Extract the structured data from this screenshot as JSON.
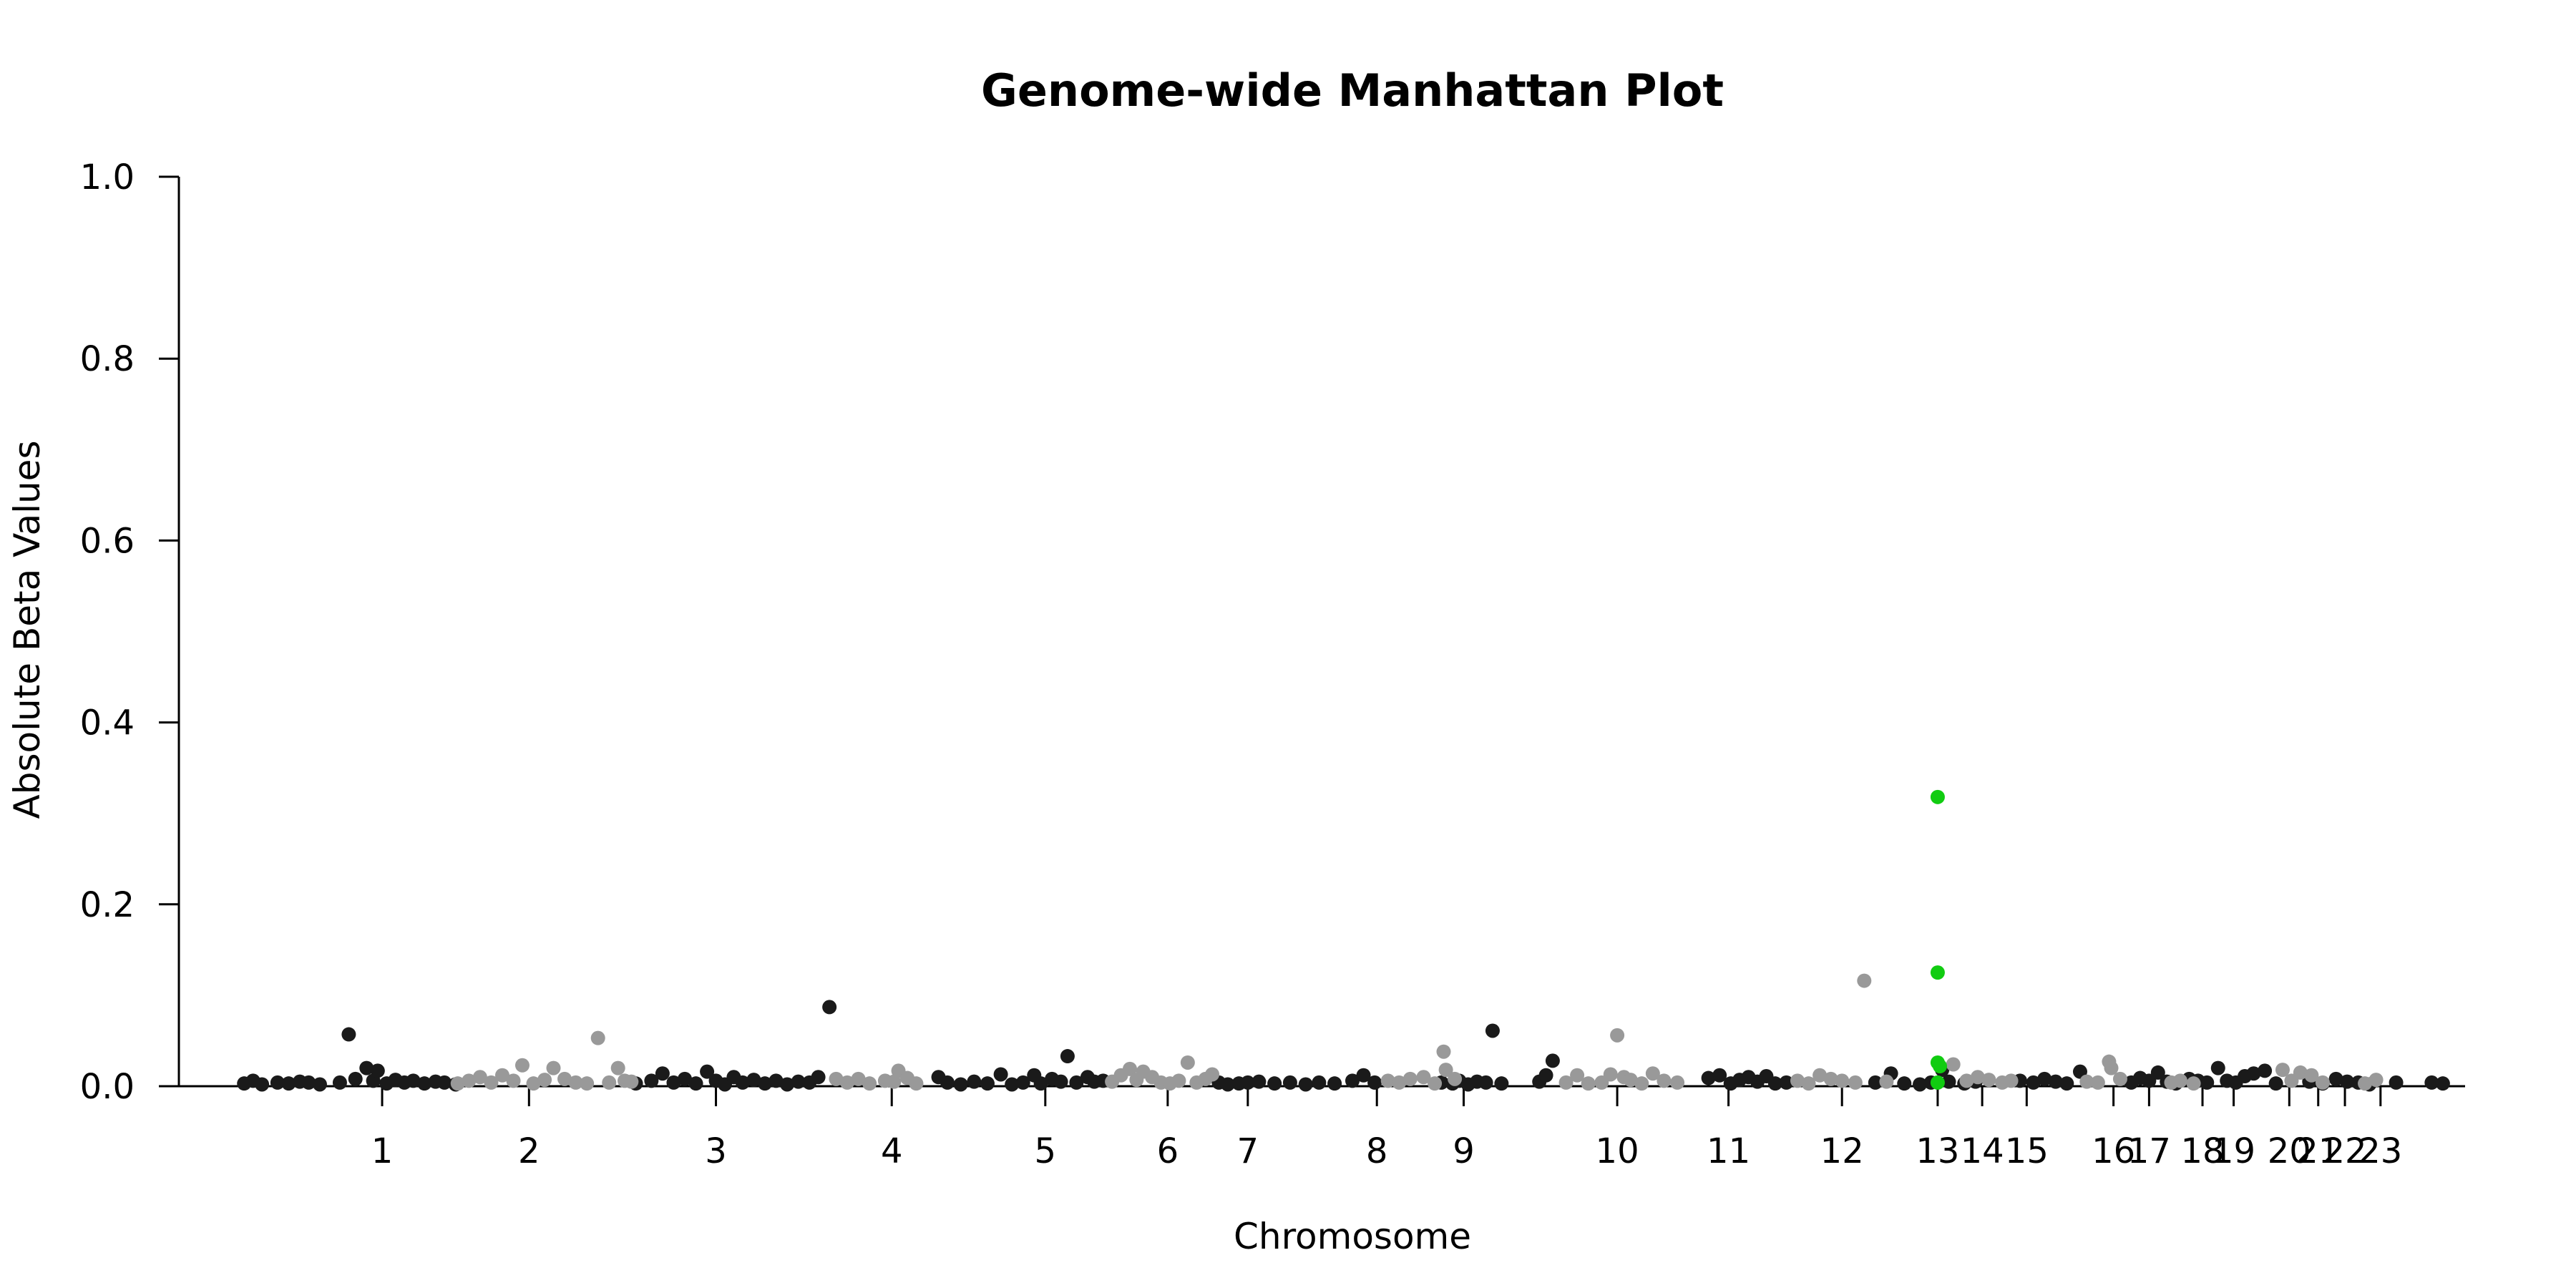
{
  "chart_data": {
    "type": "scatter",
    "title": "Genome-wide Manhattan Plot",
    "xlabel": "Chromosome",
    "ylabel": "Absolute Beta Values",
    "ylim": [
      0,
      1.0
    ],
    "y_ticks": [
      0.0,
      0.2,
      0.4,
      0.6,
      0.8,
      1.0
    ],
    "y_tick_labels": [
      "0.0",
      "0.2",
      "0.4",
      "0.6",
      "0.8",
      "1.0"
    ],
    "x_ticks": [
      {
        "label": "1",
        "pos": 0.064
      },
      {
        "label": "2",
        "pos": 0.13
      },
      {
        "label": "3",
        "pos": 0.214
      },
      {
        "label": "4",
        "pos": 0.293
      },
      {
        "label": "5",
        "pos": 0.362
      },
      {
        "label": "6",
        "pos": 0.417
      },
      {
        "label": "7",
        "pos": 0.453
      },
      {
        "label": "8",
        "pos": 0.511
      },
      {
        "label": "9",
        "pos": 0.55
      },
      {
        "label": "10",
        "pos": 0.619
      },
      {
        "label": "11",
        "pos": 0.669
      },
      {
        "label": "12",
        "pos": 0.72
      },
      {
        "label": "13",
        "pos": 0.763
      },
      {
        "label": "14",
        "pos": 0.783
      },
      {
        "label": "15",
        "pos": 0.803
      },
      {
        "label": "16",
        "pos": 0.842
      },
      {
        "label": "17",
        "pos": 0.858
      },
      {
        "label": "18",
        "pos": 0.882
      },
      {
        "label": "19",
        "pos": 0.896
      },
      {
        "label": "20",
        "pos": 0.921
      },
      {
        "label": "21",
        "pos": 0.934
      },
      {
        "label": "22",
        "pos": 0.946
      },
      {
        "label": "23",
        "pos": 0.962
      }
    ],
    "colors": {
      "dark": "#1a1a1a",
      "light": "#999999",
      "highlight": "#11cc11"
    },
    "series": [
      {
        "color": "dark",
        "points": [
          [
            0.002,
            0.003
          ],
          [
            0.006,
            0.006
          ],
          [
            0.01,
            0.002
          ],
          [
            0.017,
            0.004
          ],
          [
            0.022,
            0.003
          ],
          [
            0.027,
            0.005
          ],
          [
            0.031,
            0.004
          ],
          [
            0.036,
            0.002
          ],
          [
            0.045,
            0.004
          ],
          [
            0.049,
            0.057
          ],
          [
            0.052,
            0.008
          ],
          [
            0.057,
            0.02
          ],
          [
            0.06,
            0.006
          ],
          [
            0.062,
            0.017
          ],
          [
            0.066,
            0.003
          ],
          [
            0.07,
            0.007
          ],
          [
            0.074,
            0.004
          ],
          [
            0.078,
            0.006
          ],
          [
            0.083,
            0.003
          ],
          [
            0.088,
            0.005
          ],
          [
            0.092,
            0.004
          ],
          [
            0.097,
            0.002
          ],
          [
            0.178,
            0.003
          ],
          [
            0.185,
            0.006
          ],
          [
            0.19,
            0.014
          ],
          [
            0.195,
            0.004
          ],
          [
            0.2,
            0.008
          ],
          [
            0.205,
            0.003
          ],
          [
            0.21,
            0.016
          ],
          [
            0.214,
            0.006
          ],
          [
            0.218,
            0.002
          ],
          [
            0.222,
            0.01
          ],
          [
            0.226,
            0.004
          ],
          [
            0.231,
            0.007
          ],
          [
            0.236,
            0.003
          ],
          [
            0.241,
            0.006
          ],
          [
            0.246,
            0.002
          ],
          [
            0.251,
            0.005
          ],
          [
            0.256,
            0.004
          ],
          [
            0.26,
            0.01
          ],
          [
            0.265,
            0.087
          ],
          [
            0.314,
            0.01
          ],
          [
            0.318,
            0.004
          ],
          [
            0.324,
            0.002
          ],
          [
            0.33,
            0.005
          ],
          [
            0.336,
            0.003
          ],
          [
            0.342,
            0.013
          ],
          [
            0.347,
            0.002
          ],
          [
            0.352,
            0.004
          ],
          [
            0.357,
            0.012
          ],
          [
            0.36,
            0.003
          ],
          [
            0.365,
            0.008
          ],
          [
            0.369,
            0.005
          ],
          [
            0.372,
            0.033
          ],
          [
            0.376,
            0.004
          ],
          [
            0.381,
            0.01
          ],
          [
            0.384,
            0.005
          ],
          [
            0.388,
            0.006
          ],
          [
            0.44,
            0.004
          ],
          [
            0.444,
            0.002
          ],
          [
            0.449,
            0.003
          ],
          [
            0.453,
            0.004
          ],
          [
            0.458,
            0.005
          ],
          [
            0.465,
            0.003
          ],
          [
            0.472,
            0.004
          ],
          [
            0.479,
            0.002
          ],
          [
            0.485,
            0.004
          ],
          [
            0.492,
            0.003
          ],
          [
            0.5,
            0.006
          ],
          [
            0.505,
            0.012
          ],
          [
            0.51,
            0.004
          ],
          [
            0.54,
            0.004
          ],
          [
            0.545,
            0.003
          ],
          [
            0.548,
            0.006
          ],
          [
            0.552,
            0.002
          ],
          [
            0.556,
            0.005
          ],
          [
            0.56,
            0.004
          ],
          [
            0.563,
            0.061
          ],
          [
            0.567,
            0.003
          ],
          [
            0.584,
            0.005
          ],
          [
            0.587,
            0.012
          ],
          [
            0.59,
            0.028
          ],
          [
            0.66,
            0.009
          ],
          [
            0.665,
            0.012
          ],
          [
            0.67,
            0.003
          ],
          [
            0.674,
            0.007
          ],
          [
            0.678,
            0.01
          ],
          [
            0.682,
            0.005
          ],
          [
            0.686,
            0.011
          ],
          [
            0.69,
            0.003
          ],
          [
            0.695,
            0.004
          ],
          [
            0.735,
            0.004
          ],
          [
            0.742,
            0.014
          ],
          [
            0.748,
            0.003
          ],
          [
            0.755,
            0.002
          ],
          [
            0.76,
            0.004
          ],
          [
            0.765,
            0.018
          ],
          [
            0.768,
            0.005
          ],
          [
            0.775,
            0.003
          ],
          [
            0.78,
            0.005
          ],
          [
            0.8,
            0.006
          ],
          [
            0.806,
            0.004
          ],
          [
            0.811,
            0.008
          ],
          [
            0.816,
            0.005
          ],
          [
            0.821,
            0.003
          ],
          [
            0.827,
            0.016
          ],
          [
            0.85,
            0.004
          ],
          [
            0.854,
            0.009
          ],
          [
            0.858,
            0.006
          ],
          [
            0.862,
            0.015
          ],
          [
            0.866,
            0.005
          ],
          [
            0.87,
            0.003
          ],
          [
            0.876,
            0.008
          ],
          [
            0.88,
            0.006
          ],
          [
            0.884,
            0.004
          ],
          [
            0.889,
            0.02
          ],
          [
            0.893,
            0.006
          ],
          [
            0.897,
            0.004
          ],
          [
            0.901,
            0.011
          ],
          [
            0.905,
            0.014
          ],
          [
            0.91,
            0.017
          ],
          [
            0.915,
            0.003
          ],
          [
            0.93,
            0.005
          ],
          [
            0.936,
            0.003
          ],
          [
            0.942,
            0.008
          ],
          [
            0.947,
            0.005
          ],
          [
            0.952,
            0.004
          ],
          [
            0.957,
            0.002
          ],
          [
            0.969,
            0.004
          ],
          [
            0.985,
            0.004
          ],
          [
            0.99,
            0.003
          ]
        ]
      },
      {
        "color": "light",
        "points": [
          [
            0.098,
            0.003
          ],
          [
            0.103,
            0.006
          ],
          [
            0.108,
            0.01
          ],
          [
            0.113,
            0.004
          ],
          [
            0.118,
            0.012
          ],
          [
            0.123,
            0.006
          ],
          [
            0.127,
            0.023
          ],
          [
            0.132,
            0.003
          ],
          [
            0.137,
            0.007
          ],
          [
            0.141,
            0.02
          ],
          [
            0.146,
            0.008
          ],
          [
            0.151,
            0.004
          ],
          [
            0.156,
            0.003
          ],
          [
            0.161,
            0.053
          ],
          [
            0.166,
            0.004
          ],
          [
            0.17,
            0.02
          ],
          [
            0.173,
            0.006
          ],
          [
            0.176,
            0.005
          ],
          [
            0.268,
            0.008
          ],
          [
            0.273,
            0.004
          ],
          [
            0.278,
            0.008
          ],
          [
            0.283,
            0.003
          ],
          [
            0.29,
            0.006
          ],
          [
            0.294,
            0.005
          ],
          [
            0.296,
            0.017
          ],
          [
            0.3,
            0.009
          ],
          [
            0.304,
            0.003
          ],
          [
            0.392,
            0.005
          ],
          [
            0.396,
            0.012
          ],
          [
            0.4,
            0.019
          ],
          [
            0.403,
            0.007
          ],
          [
            0.406,
            0.016
          ],
          [
            0.41,
            0.01
          ],
          [
            0.414,
            0.004
          ],
          [
            0.418,
            0.003
          ],
          [
            0.422,
            0.006
          ],
          [
            0.426,
            0.026
          ],
          [
            0.43,
            0.004
          ],
          [
            0.434,
            0.008
          ],
          [
            0.437,
            0.013
          ],
          [
            0.516,
            0.006
          ],
          [
            0.521,
            0.004
          ],
          [
            0.526,
            0.008
          ],
          [
            0.532,
            0.01
          ],
          [
            0.537,
            0.003
          ],
          [
            0.541,
            0.038
          ],
          [
            0.542,
            0.018
          ],
          [
            0.546,
            0.008
          ],
          [
            0.596,
            0.004
          ],
          [
            0.601,
            0.012
          ],
          [
            0.606,
            0.003
          ],
          [
            0.612,
            0.004
          ],
          [
            0.616,
            0.013
          ],
          [
            0.619,
            0.056
          ],
          [
            0.622,
            0.01
          ],
          [
            0.625,
            0.007
          ],
          [
            0.63,
            0.003
          ],
          [
            0.635,
            0.014
          ],
          [
            0.64,
            0.006
          ],
          [
            0.646,
            0.004
          ],
          [
            0.7,
            0.006
          ],
          [
            0.705,
            0.003
          ],
          [
            0.71,
            0.012
          ],
          [
            0.715,
            0.008
          ],
          [
            0.72,
            0.006
          ],
          [
            0.726,
            0.004
          ],
          [
            0.73,
            0.116
          ],
          [
            0.74,
            0.005
          ],
          [
            0.77,
            0.024
          ],
          [
            0.776,
            0.006
          ],
          [
            0.781,
            0.01
          ],
          [
            0.786,
            0.007
          ],
          [
            0.792,
            0.004
          ],
          [
            0.796,
            0.006
          ],
          [
            0.83,
            0.005
          ],
          [
            0.835,
            0.004
          ],
          [
            0.84,
            0.027
          ],
          [
            0.841,
            0.02
          ],
          [
            0.845,
            0.008
          ],
          [
            0.868,
            0.004
          ],
          [
            0.872,
            0.006
          ],
          [
            0.878,
            0.003
          ],
          [
            0.918,
            0.018
          ],
          [
            0.922,
            0.006
          ],
          [
            0.926,
            0.015
          ],
          [
            0.931,
            0.012
          ],
          [
            0.936,
            0.004
          ],
          [
            0.955,
            0.003
          ],
          [
            0.96,
            0.007
          ]
        ]
      },
      {
        "color": "highlight",
        "points": [
          [
            0.763,
            0.318
          ],
          [
            0.763,
            0.125
          ],
          [
            0.763,
            0.026
          ],
          [
            0.764,
            0.022
          ],
          [
            0.763,
            0.004
          ]
        ]
      }
    ]
  }
}
